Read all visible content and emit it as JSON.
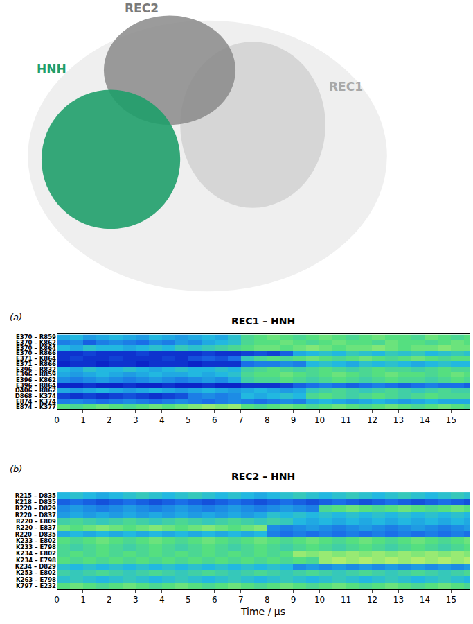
{
  "structure": {
    "labels": [
      {
        "text": "REC2",
        "color": "#7a7a7a"
      },
      {
        "text": "HNH",
        "color": "#1f9e6a"
      },
      {
        "text": "REC1",
        "color": "#a8a8a8"
      }
    ]
  },
  "chart_data": [
    {
      "type": "heatmap",
      "panel": "(a)",
      "title": "REC1 – HNH",
      "x": [
        0.25,
        0.75,
        1.25,
        1.75,
        2.25,
        2.75,
        3.25,
        3.75,
        4.25,
        4.75,
        5.25,
        5.75,
        6.25,
        6.75,
        7.25,
        7.75,
        8.25,
        8.75,
        9.25,
        9.75,
        10.25,
        10.75,
        11.25,
        11.75,
        12.25,
        12.75,
        13.25,
        13.75,
        14.25,
        14.75,
        15.25,
        15.75
      ],
      "xlim": [
        0,
        15.7
      ],
      "xticks": [
        0,
        1,
        2,
        3,
        4,
        5,
        6,
        7,
        8,
        9,
        10,
        11,
        12,
        13,
        14,
        15
      ],
      "categories": [
        "E370 – R859",
        "E370 – K862",
        "E370 – K864",
        "E370 – R866",
        "E371 – K864",
        "E371 – R866",
        "E396 – R832",
        "E396 – R859",
        "E396 – K862",
        "E396 – R864",
        "D406 – R862",
        "D868 – K374",
        "E874 – K374",
        "E874 – K377"
      ],
      "zlim": [
        0,
        1
      ],
      "colors": [
        "#0b24c8",
        "#1a6fe8",
        "#22b8e0",
        "#55df80",
        "#c5f26a"
      ],
      "z": [
        [
          0.45,
          0.5,
          0.4,
          0.45,
          0.5,
          0.45,
          0.4,
          0.5,
          0.45,
          0.4,
          0.45,
          0.5,
          0.45,
          0.55,
          0.7,
          0.75,
          0.8,
          0.75,
          0.7,
          0.75,
          0.8,
          0.75,
          0.7,
          0.75,
          0.8,
          0.75,
          0.75,
          0.7,
          0.8,
          0.75,
          0.7,
          0.75
        ],
        [
          0.3,
          0.35,
          0.2,
          0.3,
          0.35,
          0.3,
          0.25,
          0.35,
          0.3,
          0.4,
          0.35,
          0.45,
          0.5,
          0.55,
          0.7,
          0.75,
          0.75,
          0.8,
          0.75,
          0.7,
          0.75,
          0.8,
          0.75,
          0.75,
          0.7,
          0.8,
          0.75,
          0.75,
          0.7,
          0.75,
          0.8,
          0.75
        ],
        [
          0.5,
          0.45,
          0.55,
          0.5,
          0.5,
          0.45,
          0.5,
          0.55,
          0.5,
          0.6,
          0.55,
          0.6,
          0.65,
          0.7,
          0.75,
          0.8,
          0.8,
          0.75,
          0.8,
          0.85,
          0.8,
          0.75,
          0.8,
          0.8,
          0.85,
          0.8,
          0.75,
          0.8,
          0.8,
          0.85,
          0.8,
          0.8
        ],
        [
          0.05,
          0.05,
          0.1,
          0.05,
          0.05,
          0.05,
          0.1,
          0.05,
          0.05,
          0.05,
          0.05,
          0.1,
          0.05,
          0.05,
          0.1,
          0.15,
          0.1,
          0.2,
          0.45,
          0.5,
          0.55,
          0.5,
          0.6,
          0.55,
          0.5,
          0.6,
          0.55,
          0.6,
          0.5,
          0.55,
          0.6,
          0.55
        ],
        [
          0.05,
          0.1,
          0.05,
          0.05,
          0.1,
          0.05,
          0.05,
          0.05,
          0.1,
          0.05,
          0.15,
          0.2,
          0.15,
          0.25,
          0.6,
          0.7,
          0.75,
          0.7,
          0.75,
          0.8,
          0.75,
          0.7,
          0.75,
          0.8,
          0.75,
          0.7,
          0.75,
          0.8,
          0.75,
          0.7,
          0.75,
          0.75
        ],
        [
          0,
          0.05,
          0.05,
          0,
          0.05,
          0.05,
          0,
          0.05,
          0.05,
          0.05,
          0,
          0.05,
          0.05,
          0.05,
          0.25,
          0.3,
          0.3,
          0.35,
          0.3,
          0.5,
          0.55,
          0.5,
          0.45,
          0.55,
          0.5,
          0.55,
          0.5,
          0.45,
          0.5,
          0.55,
          0.5,
          0.5
        ],
        [
          0.5,
          0.45,
          0.55,
          0.5,
          0.5,
          0.55,
          0.5,
          0.45,
          0.5,
          0.55,
          0.5,
          0.5,
          0.55,
          0.5,
          0.65,
          0.7,
          0.75,
          0.7,
          0.65,
          0.7,
          0.75,
          0.7,
          0.65,
          0.7,
          0.75,
          0.7,
          0.7,
          0.65,
          0.7,
          0.75,
          0.7,
          0.7
        ],
        [
          0.45,
          0.4,
          0.45,
          0.5,
          0.45,
          0.4,
          0.45,
          0.5,
          0.45,
          0.45,
          0.5,
          0.45,
          0.5,
          0.55,
          0.7,
          0.75,
          0.75,
          0.8,
          0.75,
          0.7,
          0.75,
          0.8,
          0.75,
          0.7,
          0.75,
          0.8,
          0.75,
          0.75,
          0.7,
          0.75,
          0.8,
          0.75
        ],
        [
          0.35,
          0.3,
          0.35,
          0.4,
          0.35,
          0.3,
          0.35,
          0.4,
          0.35,
          0.3,
          0.35,
          0.4,
          0.35,
          0.45,
          0.65,
          0.7,
          0.7,
          0.75,
          0.7,
          0.65,
          0.7,
          0.75,
          0.7,
          0.65,
          0.7,
          0.75,
          0.7,
          0.7,
          0.65,
          0.7,
          0.75,
          0.7
        ],
        [
          0,
          0,
          0.05,
          0,
          0,
          0.05,
          0,
          0,
          0.05,
          0,
          0,
          0.05,
          0,
          0,
          0.05,
          0.05,
          0.05,
          0.1,
          0.2,
          0.25,
          0.3,
          0.25,
          0.2,
          0.25,
          0.3,
          0.25,
          0.2,
          0.25,
          0.3,
          0.25,
          0.25,
          0.2
        ],
        [
          0.45,
          0.4,
          0.45,
          0.5,
          0.45,
          0.4,
          0.45,
          0.5,
          0.45,
          0.4,
          0.45,
          0.5,
          0.45,
          0.4,
          0.45,
          0.5,
          0.45,
          0.4,
          0.45,
          0.6,
          0.65,
          0.7,
          0.65,
          0.6,
          0.65,
          0.7,
          0.65,
          0.6,
          0.65,
          0.7,
          0.65,
          0.65
        ],
        [
          0.1,
          0.05,
          0.1,
          0.05,
          0.1,
          0.15,
          0.1,
          0.05,
          0.1,
          0.15,
          0.3,
          0.35,
          0.3,
          0.35,
          0.5,
          0.45,
          0.5,
          0.55,
          0.5,
          0.7,
          0.75,
          0.7,
          0.65,
          0.7,
          0.75,
          0.7,
          0.65,
          0.7,
          0.75,
          0.7,
          0.7,
          0.7
        ],
        [
          0.3,
          0.35,
          0.3,
          0.25,
          0.3,
          0.35,
          0.3,
          0.25,
          0.3,
          0.35,
          0.3,
          0.25,
          0.3,
          0.35,
          0.3,
          0.25,
          0.3,
          0.35,
          0.3,
          0.45,
          0.5,
          0.45,
          0.4,
          0.45,
          0.5,
          0.45,
          0.4,
          0.45,
          0.5,
          0.45,
          0.45,
          0.45
        ],
        [
          0.75,
          0.7,
          0.75,
          0.8,
          0.75,
          0.7,
          0.75,
          0.8,
          0.75,
          0.8,
          0.85,
          0.9,
          0.85,
          0.9,
          0.75,
          0.7,
          0.75,
          0.8,
          0.75,
          0.7,
          0.75,
          0.8,
          0.75,
          0.7,
          0.75,
          0.8,
          0.75,
          0.7,
          0.75,
          0.8,
          0.75,
          0.7
        ]
      ]
    },
    {
      "type": "heatmap",
      "panel": "(b)",
      "title": "REC2 – HNH",
      "xlabel": "Time / µs",
      "x": [
        0.25,
        0.75,
        1.25,
        1.75,
        2.25,
        2.75,
        3.25,
        3.75,
        4.25,
        4.75,
        5.25,
        5.75,
        6.25,
        6.75,
        7.25,
        7.75,
        8.25,
        8.75,
        9.25,
        9.75,
        10.25,
        10.75,
        11.25,
        11.75,
        12.25,
        12.75,
        13.25,
        13.75,
        14.25,
        14.75,
        15.25,
        15.75
      ],
      "xlim": [
        0,
        15.7
      ],
      "xticks": [
        0,
        1,
        2,
        3,
        4,
        5,
        6,
        7,
        8,
        9,
        10,
        11,
        12,
        13,
        14,
        15
      ],
      "categories": [
        "R215 – D835",
        "K218 – D835",
        "R220 – D829",
        "R220 – D837",
        "R220 – E809",
        "R220 – E837",
        "R220 – D835",
        "K233 – E802",
        "K233 – E798",
        "K234 – E802",
        "K234 – E798",
        "K234 – D829",
        "K253 – E802",
        "K263 – E798",
        "K797 – E232"
      ],
      "zlim": [
        0,
        1
      ],
      "colors": [
        "#0b24c8",
        "#1a6fe8",
        "#22b8e0",
        "#55df80",
        "#c5f26a"
      ],
      "z": [
        [
          0.5,
          0.55,
          0.5,
          0.45,
          0.5,
          0.55,
          0.6,
          0.55,
          0.5,
          0.55,
          0.6,
          0.55,
          0.5,
          0.55,
          0.5,
          0.45,
          0.5,
          0.55,
          0.6,
          0.55,
          0.5,
          0.55,
          0.6,
          0.55,
          0.5,
          0.55,
          0.6,
          0.55,
          0.5,
          0.55,
          0.6,
          0.55
        ],
        [
          0.2,
          0.25,
          0.2,
          0.15,
          0.2,
          0.25,
          0.2,
          0.15,
          0.2,
          0.25,
          0.2,
          0.15,
          0.2,
          0.25,
          0.2,
          0.15,
          0.2,
          0.25,
          0.2,
          0.15,
          0.2,
          0.25,
          0.2,
          0.15,
          0.2,
          0.25,
          0.2,
          0.15,
          0.2,
          0.25,
          0.2,
          0.15
        ],
        [
          0.35,
          0.4,
          0.35,
          0.3,
          0.35,
          0.4,
          0.35,
          0.3,
          0.35,
          0.4,
          0.35,
          0.3,
          0.35,
          0.4,
          0.35,
          0.3,
          0.35,
          0.4,
          0.35,
          0.3,
          0.7,
          0.75,
          0.8,
          0.75,
          0.7,
          0.75,
          0.8,
          0.75,
          0.7,
          0.75,
          0.8,
          0.75
        ],
        [
          0.4,
          0.45,
          0.4,
          0.45,
          0.4,
          0.45,
          0.4,
          0.45,
          0.4,
          0.45,
          0.4,
          0.45,
          0.4,
          0.45,
          0.4,
          0.45,
          0.55,
          0.5,
          0.55,
          0.5,
          0.55,
          0.5,
          0.55,
          0.5,
          0.55,
          0.5,
          0.55,
          0.5,
          0.55,
          0.5,
          0.55,
          0.5
        ],
        [
          0.65,
          0.7,
          0.65,
          0.6,
          0.65,
          0.7,
          0.65,
          0.6,
          0.65,
          0.7,
          0.65,
          0.6,
          0.65,
          0.7,
          0.65,
          0.6,
          0.65,
          0.6,
          0.5,
          0.45,
          0.5,
          0.45,
          0.5,
          0.45,
          0.5,
          0.45,
          0.5,
          0.45,
          0.5,
          0.45,
          0.5,
          0.45
        ],
        [
          0.8,
          0.75,
          0.8,
          0.85,
          0.8,
          0.75,
          0.8,
          0.85,
          0.8,
          0.75,
          0.8,
          0.85,
          0.8,
          0.75,
          0.8,
          0.85,
          0.35,
          0.3,
          0.35,
          0.4,
          0.35,
          0.3,
          0.35,
          0.4,
          0.35,
          0.3,
          0.35,
          0.4,
          0.35,
          0.3,
          0.35,
          0.4
        ],
        [
          0.45,
          0.5,
          0.45,
          0.5,
          0.45,
          0.5,
          0.45,
          0.5,
          0.45,
          0.5,
          0.45,
          0.5,
          0.45,
          0.5,
          0.45,
          0.5,
          0.3,
          0.25,
          0.3,
          0.25,
          0.3,
          0.25,
          0.3,
          0.25,
          0.3,
          0.25,
          0.3,
          0.25,
          0.3,
          0.25,
          0.3,
          0.25
        ],
        [
          0.75,
          0.7,
          0.75,
          0.8,
          0.75,
          0.7,
          0.75,
          0.8,
          0.75,
          0.7,
          0.75,
          0.8,
          0.75,
          0.7,
          0.75,
          0.8,
          0.75,
          0.7,
          0.75,
          0.8,
          0.75,
          0.7,
          0.75,
          0.8,
          0.75,
          0.7,
          0.75,
          0.8,
          0.75,
          0.7,
          0.75,
          0.8
        ],
        [
          0.7,
          0.65,
          0.7,
          0.75,
          0.7,
          0.65,
          0.7,
          0.75,
          0.7,
          0.65,
          0.7,
          0.75,
          0.7,
          0.65,
          0.7,
          0.75,
          0.7,
          0.65,
          0.7,
          0.75,
          0.7,
          0.65,
          0.7,
          0.75,
          0.7,
          0.65,
          0.7,
          0.75,
          0.7,
          0.65,
          0.7,
          0.75
        ],
        [
          0.7,
          0.75,
          0.7,
          0.75,
          0.7,
          0.75,
          0.7,
          0.75,
          0.7,
          0.75,
          0.7,
          0.75,
          0.7,
          0.75,
          0.7,
          0.75,
          0.7,
          0.75,
          0.9,
          0.85,
          0.9,
          0.85,
          0.9,
          0.85,
          0.9,
          0.85,
          0.9,
          0.85,
          0.9,
          0.85,
          0.9,
          0.85
        ],
        [
          0.75,
          0.7,
          0.75,
          0.7,
          0.75,
          0.7,
          0.75,
          0.7,
          0.75,
          0.7,
          0.75,
          0.7,
          0.75,
          0.7,
          0.75,
          0.7,
          0.75,
          0.7,
          0.75,
          0.7,
          0.9,
          0.95,
          0.9,
          0.95,
          0.9,
          0.95,
          0.9,
          0.95,
          0.9,
          0.95,
          0.9,
          0.95
        ],
        [
          0.55,
          0.5,
          0.55,
          0.5,
          0.55,
          0.5,
          0.55,
          0.5,
          0.55,
          0.5,
          0.55,
          0.5,
          0.55,
          0.5,
          0.55,
          0.5,
          0.55,
          0.5,
          0.35,
          0.4,
          0.35,
          0.4,
          0.35,
          0.4,
          0.35,
          0.4,
          0.35,
          0.4,
          0.35,
          0.4,
          0.35,
          0.4
        ],
        [
          0.65,
          0.6,
          0.65,
          0.7,
          0.65,
          0.6,
          0.65,
          0.7,
          0.65,
          0.6,
          0.65,
          0.7,
          0.65,
          0.6,
          0.65,
          0.7,
          0.65,
          0.6,
          0.65,
          0.7,
          0.65,
          0.6,
          0.65,
          0.7,
          0.65,
          0.6,
          0.65,
          0.7,
          0.65,
          0.6,
          0.65,
          0.7
        ],
        [
          0.55,
          0.6,
          0.55,
          0.5,
          0.55,
          0.6,
          0.55,
          0.5,
          0.55,
          0.6,
          0.55,
          0.5,
          0.55,
          0.6,
          0.55,
          0.5,
          0.55,
          0.6,
          0.55,
          0.5,
          0.55,
          0.6,
          0.55,
          0.5,
          0.55,
          0.6,
          0.55,
          0.5,
          0.55,
          0.6,
          0.55,
          0.5
        ],
        [
          0.75,
          0.8,
          0.75,
          0.7,
          0.75,
          0.8,
          0.75,
          0.7,
          0.75,
          0.8,
          0.75,
          0.7,
          0.75,
          0.8,
          0.75,
          0.7,
          0.75,
          0.8,
          0.75,
          0.7,
          0.75,
          0.8,
          0.75,
          0.7,
          0.75,
          0.8,
          0.75,
          0.7,
          0.75,
          0.8,
          0.75,
          0.7
        ]
      ]
    }
  ]
}
